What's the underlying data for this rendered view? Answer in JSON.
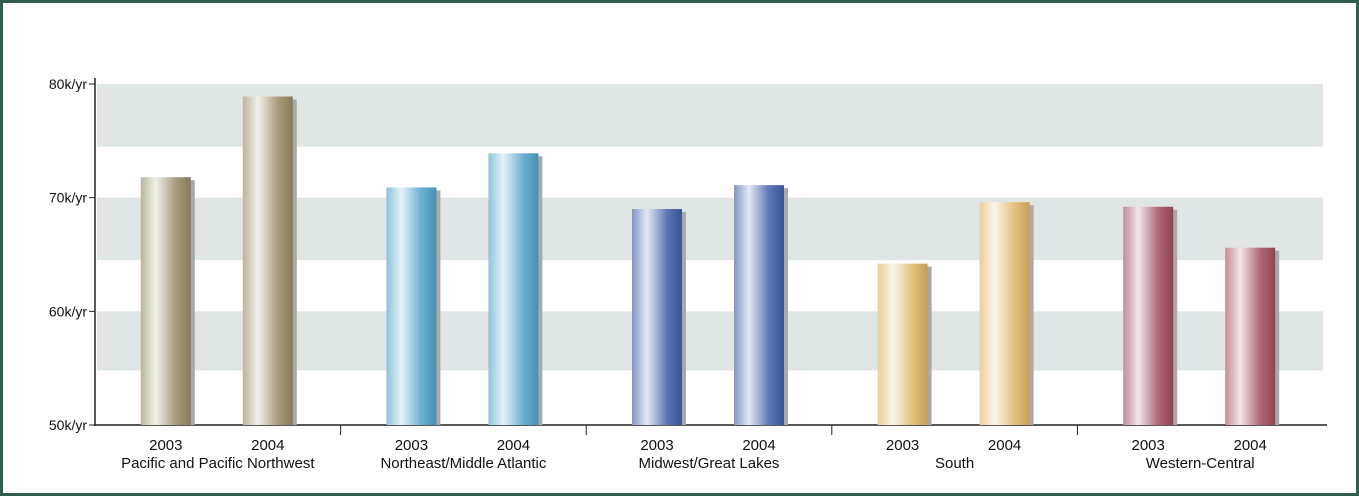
{
  "chart_data": {
    "type": "bar",
    "title": "",
    "xlabel": "",
    "ylabel": "",
    "ylim": [
      50,
      80
    ],
    "y_ticks": [
      {
        "value": 80,
        "label": "80k/yr"
      },
      {
        "value": 70,
        "label": "70k/yr"
      },
      {
        "value": 60,
        "label": "60k/yr"
      },
      {
        "value": 50,
        "label": "50k/yr"
      }
    ],
    "bands": [
      [
        74.5,
        80
      ],
      [
        64.5,
        70
      ],
      [
        54.8,
        60
      ]
    ],
    "grid": false,
    "legend": "none",
    "groups": [
      {
        "name": "Pacific and Pacific Northwest",
        "color": "#988a64",
        "bars": [
          {
            "year": "2003",
            "value": 71.8
          },
          {
            "year": "2004",
            "value": 78.9
          }
        ]
      },
      {
        "name": "Northeast/Middle Atlantic",
        "color": "#4fa3c9",
        "bars": [
          {
            "year": "2003",
            "value": 70.9
          },
          {
            "year": "2004",
            "value": 73.9
          }
        ]
      },
      {
        "name": "Midwest/Great Lakes",
        "color": "#3f5fa9",
        "bars": [
          {
            "year": "2003",
            "value": 69.0
          },
          {
            "year": "2004",
            "value": 71.1
          }
        ]
      },
      {
        "name": "South",
        "color": "#dfb564",
        "bars": [
          {
            "year": "2003",
            "value": 64.2
          },
          {
            "year": "2004",
            "value": 69.6
          }
        ]
      },
      {
        "name": "Western-Central",
        "color": "#a24d5a",
        "bars": [
          {
            "year": "2003",
            "value": 69.2
          },
          {
            "year": "2004",
            "value": 65.6
          }
        ]
      }
    ],
    "colors": {
      "band": "#e0e6e5",
      "axis": "#222222",
      "frame": "#2f5f4c"
    }
  }
}
